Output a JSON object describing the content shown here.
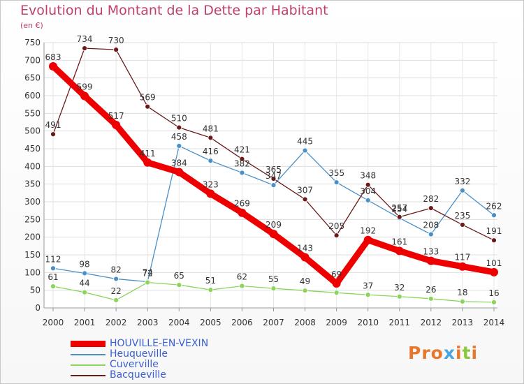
{
  "header": {
    "title": "Evolution du Montant de la Dette par Habitant",
    "unit": "(en €)"
  },
  "logo": {
    "text": "Proxiti",
    "colors": [
      "#e8772e",
      "#e8772e",
      "#e8772e",
      "#4aa6e0",
      "#e8772e",
      "#8cc63f",
      "#e8772e"
    ]
  },
  "chart_data": {
    "type": "line",
    "title": "Evolution du Montant de la Dette par Habitant",
    "ylabel": "(en €)",
    "xlabel": "",
    "x": [
      "2000",
      "2001",
      "2002",
      "2003",
      "2004",
      "2005",
      "2006",
      "2007",
      "2008",
      "2009",
      "2010",
      "2011",
      "2012",
      "2013",
      "2014"
    ],
    "ylim": [
      0,
      750
    ],
    "yticks": [
      "0",
      "50",
      "100",
      "150",
      "200",
      "250",
      "300",
      "350",
      "400",
      "450",
      "500",
      "550",
      "600",
      "650",
      "700",
      "750"
    ],
    "grid": true,
    "legend_position": "bottom-left",
    "series": [
      {
        "name": "HOUVILLE-EN-VEXIN",
        "color": "#ee0000",
        "emphasis": true,
        "values": [
          683,
          599,
          517,
          411,
          384,
          323,
          269,
          209,
          143,
          69,
          192,
          161,
          133,
          117,
          101
        ],
        "labels": [
          "683",
          "599",
          "517",
          "411",
          "384",
          "323",
          "269",
          "209",
          "143",
          "69",
          "192",
          "161",
          "133",
          "117",
          "101"
        ]
      },
      {
        "name": "Heuqueville",
        "color": "#4a90c8",
        "values": [
          112,
          98,
          82,
          74,
          458,
          416,
          382,
          347,
          445,
          355,
          304,
          254,
          208,
          332,
          262
        ],
        "labels": [
          "112",
          "98",
          "82",
          "74",
          "458",
          "416",
          "382",
          "347",
          "445",
          "355",
          "304",
          "254",
          "208",
          "332",
          "262"
        ]
      },
      {
        "name": "Cuverville",
        "color": "#8ad45a",
        "values": [
          61,
          44,
          22,
          72,
          65,
          51,
          62,
          55,
          49,
          43,
          37,
          32,
          26,
          18,
          16
        ],
        "labels": [
          "61",
          "44",
          "22",
          "72",
          "65",
          "51",
          "62",
          "55",
          "49",
          "",
          "37",
          "32",
          "26",
          "18",
          "16"
        ]
      },
      {
        "name": "Bacqueville",
        "color": "#6b1a1a",
        "values": [
          491,
          734,
          730,
          569,
          510,
          481,
          421,
          365,
          307,
          205,
          348,
          257,
          282,
          235,
          191
        ],
        "labels": [
          "491",
          "734",
          "730",
          "569",
          "510",
          "481",
          "421",
          "365",
          "307",
          "205",
          "348",
          "257",
          "282",
          "235",
          "191"
        ]
      }
    ]
  }
}
